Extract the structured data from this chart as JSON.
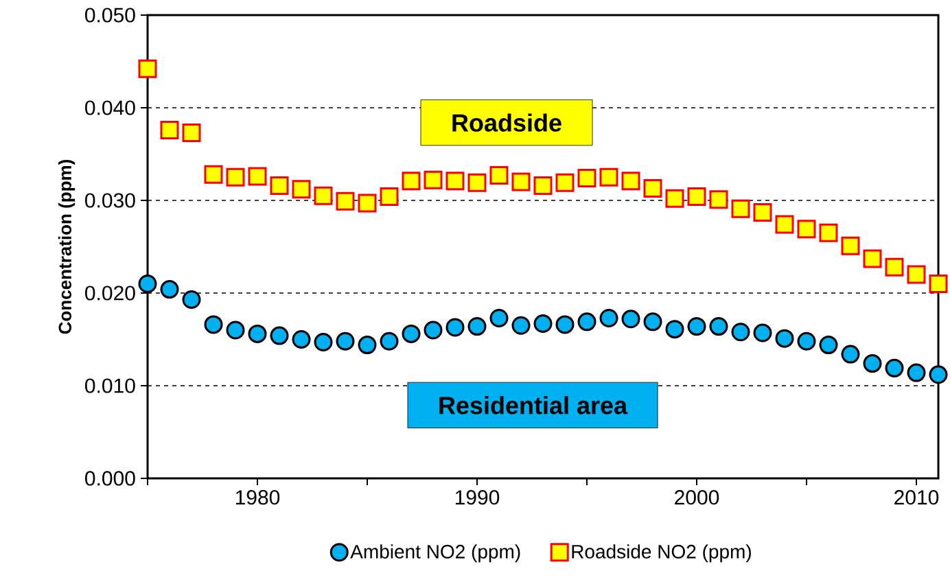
{
  "chart_data": {
    "type": "scatter",
    "ylabel": "Concentration  (ppm)",
    "x": [
      1975,
      1976,
      1977,
      1978,
      1979,
      1980,
      1981,
      1982,
      1983,
      1984,
      1985,
      1986,
      1987,
      1988,
      1989,
      1990,
      1991,
      1992,
      1993,
      1994,
      1995,
      1996,
      1997,
      1998,
      1999,
      2000,
      2001,
      2002,
      2003,
      2004,
      2005,
      2006,
      2007,
      2008,
      2009,
      2010,
      2011
    ],
    "series": [
      {
        "name": "Ambient NO2 (ppm)",
        "color": "#00b0f0",
        "marker": "circle",
        "values": [
          0.021,
          0.0204,
          0.0193,
          0.0166,
          0.016,
          0.0156,
          0.0154,
          0.015,
          0.0147,
          0.0148,
          0.0144,
          0.0148,
          0.0156,
          0.016,
          0.0163,
          0.0164,
          0.0173,
          0.0165,
          0.0167,
          0.0166,
          0.0169,
          0.0173,
          0.0172,
          0.0169,
          0.0161,
          0.0164,
          0.0164,
          0.0158,
          0.0157,
          0.0151,
          0.0148,
          0.0144,
          0.0134,
          0.0124,
          0.0119,
          0.0114,
          0.0112
        ]
      },
      {
        "name": "Roadside NO2 (ppm)",
        "color": "#ffff00",
        "marker": "square",
        "values": [
          0.0442,
          0.0376,
          0.0373,
          0.0328,
          0.0325,
          0.0326,
          0.0316,
          0.0312,
          0.0305,
          0.0299,
          0.0297,
          0.0304,
          0.0321,
          0.0322,
          0.0321,
          0.0319,
          0.0327,
          0.032,
          0.0316,
          0.0319,
          0.0324,
          0.0325,
          0.0321,
          0.0313,
          0.0302,
          0.0304,
          0.0301,
          0.0291,
          0.0287,
          0.0274,
          0.0269,
          0.0265,
          0.0251,
          0.0237,
          0.0228,
          0.022,
          0.021
        ]
      }
    ],
    "annotations": [
      "Residential area",
      "Roadside"
    ],
    "xlim": [
      1975,
      2011
    ],
    "xticks": [
      {
        "value": 1975,
        "label": null
      },
      1980,
      {
        "value": 1985,
        "label": null
      },
      1990,
      {
        "value": 1995,
        "label": null
      },
      2000,
      {
        "value": 2005,
        "label": null
      },
      2010
    ],
    "ylim": [
      0,
      0.05
    ],
    "yticks": [
      {
        "value": 0,
        "label": "0.000"
      },
      {
        "value": 0.01,
        "label": "0.010"
      },
      {
        "value": 0.02,
        "label": "0.020"
      },
      {
        "value": 0.03,
        "label": "0.030"
      },
      {
        "value": 0.04,
        "label": "0.040"
      },
      {
        "value": 0.05,
        "label": "0.050"
      }
    ],
    "grid": "y",
    "legend": "bottom"
  }
}
